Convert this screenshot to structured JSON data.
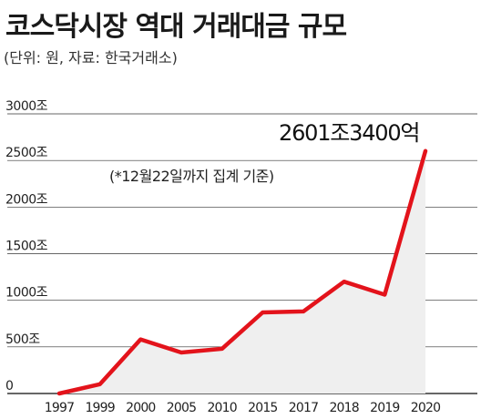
{
  "header": {
    "title": "코스닥시장 역대 거래대금 규모",
    "subtitle": "(단위: 원, 자료: 한국거래소)"
  },
  "chart_data": {
    "type": "area",
    "title": "코스닥시장 역대 거래대금 규모",
    "categories": [
      "1997",
      "1999",
      "2000",
      "2005",
      "2010",
      "2015",
      "2017",
      "2018",
      "2019",
      "2020"
    ],
    "series": [
      {
        "values": [
          0,
          100,
          580,
          440,
          480,
          870,
          880,
          1200,
          1060,
          2601.34
        ]
      }
    ],
    "y_ticks": [
      "0",
      "500조",
      "1000조",
      "1500조",
      "2000조",
      "2500조",
      "3000조"
    ],
    "ylim": [
      0,
      3000
    ],
    "grid": "horizontal",
    "annotation": "(*12월22일까지 집계 기준)",
    "callout": "2601조3400억",
    "colors": {
      "line": "#e3131b",
      "fill": "#efefef",
      "grid": "#333333"
    }
  }
}
